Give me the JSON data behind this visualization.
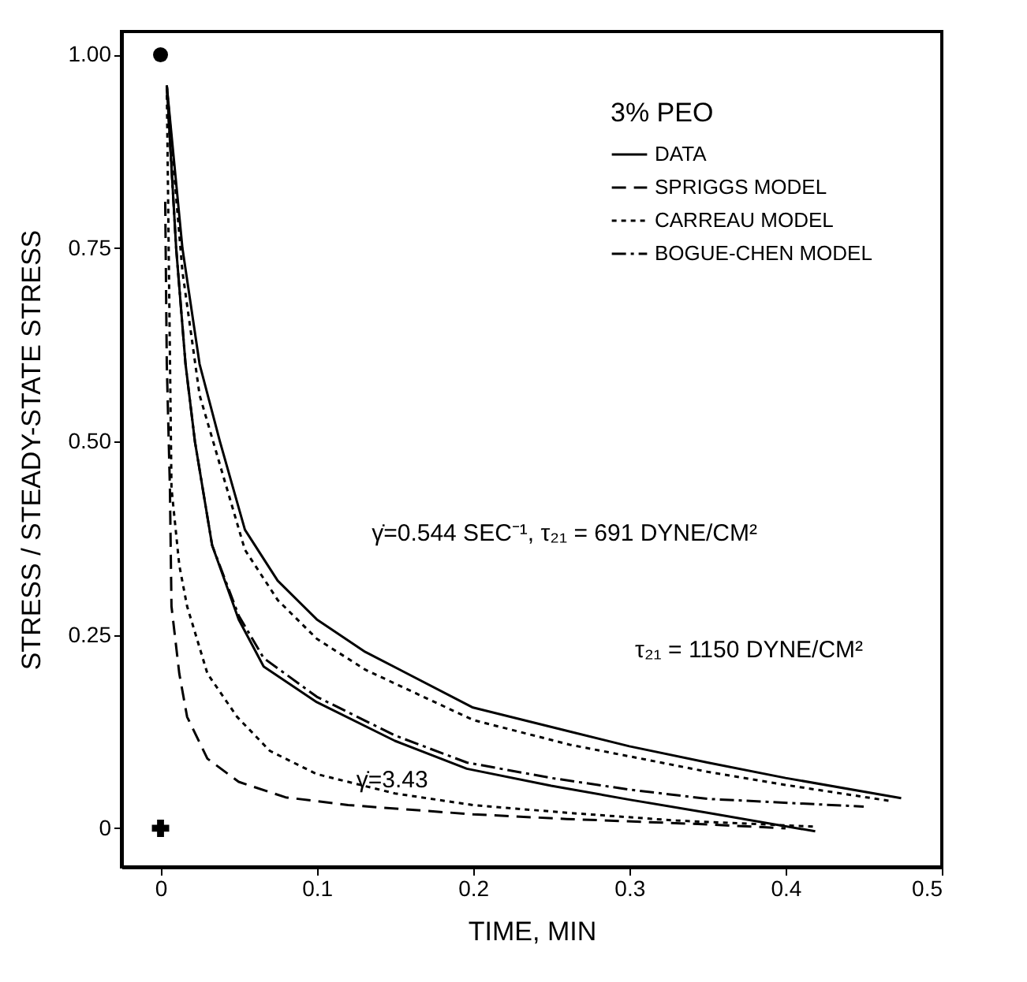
{
  "chart_data": {
    "type": "line",
    "xlabel": "TIME, MIN",
    "ylabel": "STRESS / STEADY-STATE STRESS",
    "legend_title": "3% PEO",
    "legend": "top right",
    "xlim": [
      -0.025,
      0.5
    ],
    "ylim": [
      -0.05,
      1.03
    ],
    "xticks": [
      0,
      0.1,
      0.2,
      0.3,
      0.4,
      0.5
    ],
    "yticks": [
      0,
      0.25,
      {
        "value": 0.5,
        "label": "0.50"
      },
      0.75,
      {
        "value": 1,
        "label": "1.00"
      }
    ],
    "grid": false,
    "series": [
      {
        "name": "DATA",
        "color": "#000000",
        "line_style": "solid",
        "x": [
          0.004,
          0.014,
          0.025,
          0.038,
          0.054,
          0.075,
          0.1,
          0.131,
          0.2,
          0.262,
          0.3,
          0.35,
          0.4,
          0.474
        ],
        "values": [
          0.96,
          0.75,
          0.6,
          0.5,
          0.386,
          0.32,
          0.27,
          0.228,
          0.156,
          0.125,
          0.106,
          0.085,
          0.065,
          0.039
        ]
      },
      {
        "name": "SPRIGGS MODEL",
        "color": "#000000",
        "line_style": "dashed",
        "x": [
          0.003,
          0.004,
          0.006,
          0.007,
          0.012,
          0.017,
          0.03,
          0.05,
          0.08,
          0.12,
          0.2,
          0.26,
          0.35,
          0.4
        ],
        "values": [
          0.81,
          0.6,
          0.44,
          0.287,
          0.2,
          0.144,
          0.09,
          0.06,
          0.04,
          0.03,
          0.018,
          0.012,
          0.005,
          0.0
        ]
      },
      {
        "name": "CARREAU MODEL",
        "color": "#000000",
        "line_style": "dotted",
        "x": [
          0.004,
          0.014,
          0.025,
          0.038,
          0.054,
          0.075,
          0.1,
          0.131,
          0.2,
          0.262,
          0.3,
          0.35,
          0.4,
          0.468
        ],
        "values": [
          0.96,
          0.72,
          0.56,
          0.47,
          0.36,
          0.295,
          0.245,
          0.205,
          0.14,
          0.108,
          0.093,
          0.073,
          0.056,
          0.035
        ]
      },
      {
        "name": "BOGUE-CHEN MODEL",
        "color": "#000000",
        "line_style": "dashdot",
        "x": [
          0.004,
          0.01,
          0.016,
          0.022,
          0.033,
          0.05,
          0.066,
          0.1,
          0.15,
          0.196,
          0.25,
          0.3,
          0.35,
          0.45
        ],
        "values": [
          0.96,
          0.75,
          0.6,
          0.5,
          0.366,
          0.275,
          0.22,
          0.17,
          0.12,
          0.085,
          0.065,
          0.05,
          0.038,
          0.028
        ]
      },
      {
        "color": "#000000",
        "line_style": "solid",
        "x": [
          0.004,
          0.01,
          0.016,
          0.022,
          0.033,
          0.05,
          0.066,
          0.1,
          0.15,
          0.196,
          0.25,
          0.3,
          0.35,
          0.419
        ],
        "values": [
          0.96,
          0.75,
          0.6,
          0.5,
          0.366,
          0.27,
          0.209,
          0.163,
          0.113,
          0.077,
          0.055,
          0.037,
          0.02,
          -0.004
        ]
      },
      {
        "color": "#000000",
        "line_style": "dotted",
        "x": [
          0.004,
          0.007,
          0.012,
          0.017,
          0.03,
          0.049,
          0.07,
          0.1,
          0.15,
          0.2,
          0.26,
          0.33,
          0.42
        ],
        "values": [
          0.96,
          0.44,
          0.34,
          0.287,
          0.2,
          0.144,
          0.1,
          0.07,
          0.045,
          0.03,
          0.02,
          0.01,
          0.002
        ]
      },
      {
        "type": "scatter",
        "color": "#000000",
        "marker": "circle",
        "x": [
          0
        ],
        "values": [
          1
        ]
      },
      {
        "type": "scatter",
        "color": "#000000",
        "marker": "cross",
        "x": [
          0
        ],
        "values": [
          0
        ]
      }
    ],
    "annotations": [
      "γ̇=0.544 SEC⁻¹,  τ₂₁ = 691 DYNE/CM²",
      "τ₂₁ = 1150 DYNE/CM²",
      "γ̇=3.43"
    ]
  }
}
